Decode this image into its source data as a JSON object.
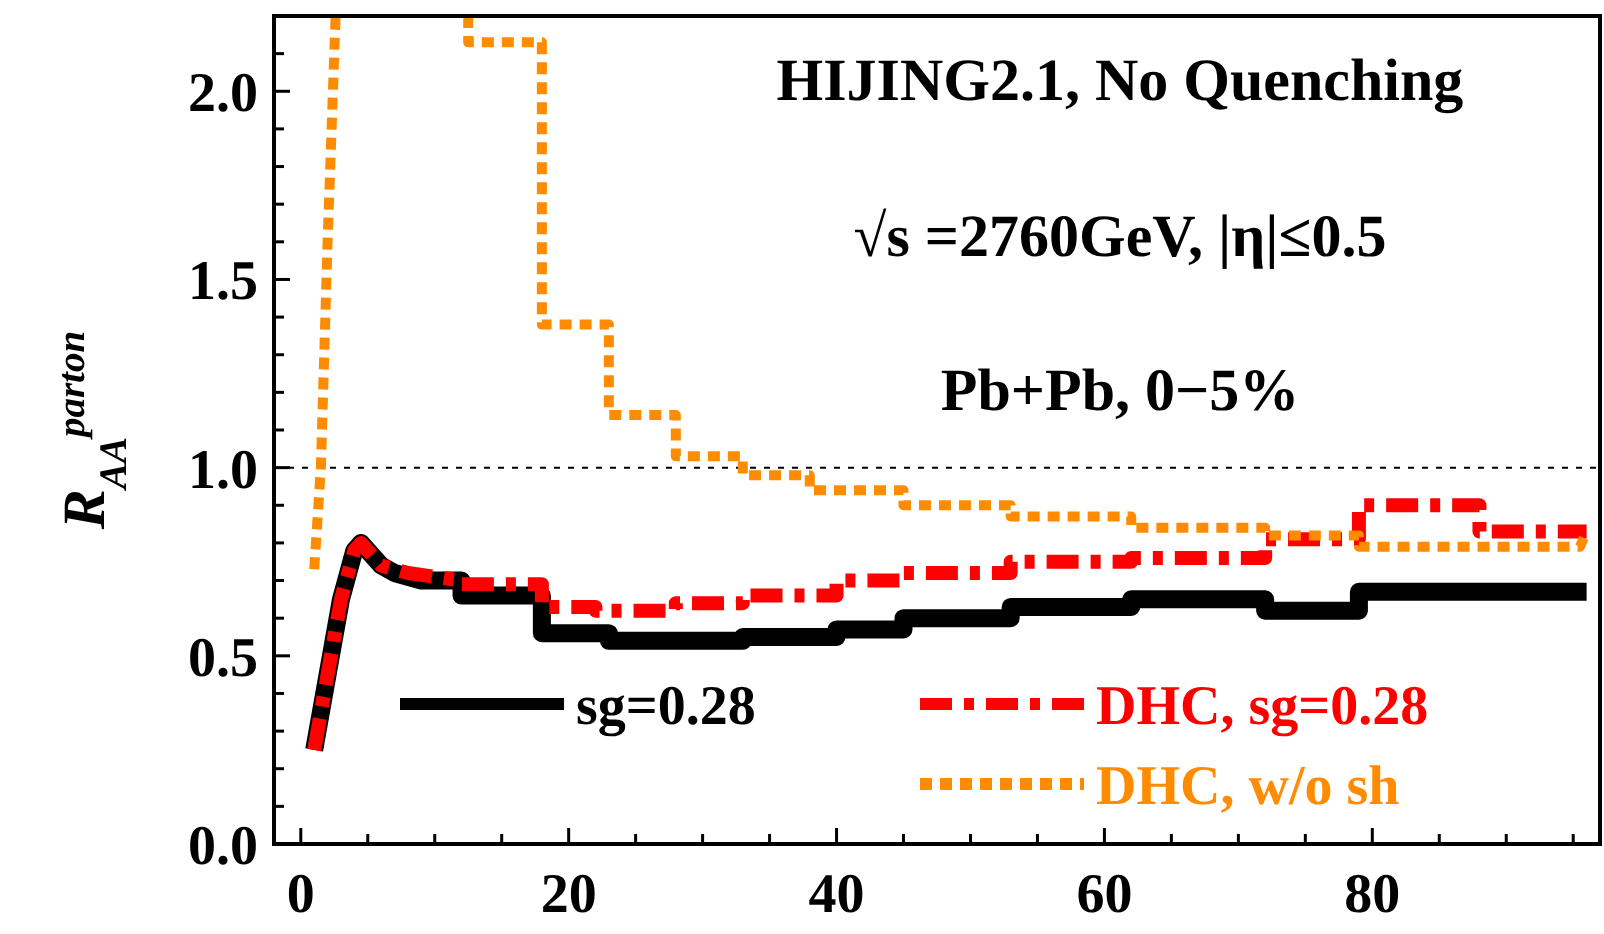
{
  "chart_data": {
    "type": "line",
    "ylabel": "R$_{AA}$$^{parton}$",
    "annotations": [
      "HIJING2.1, No Quenching",
      "√s =2760GeV, |η|≤0.5",
      "Pb+Pb, 0−5%"
    ],
    "xlim": [
      -2,
      97
    ],
    "ylim": [
      0,
      2.2
    ],
    "xticks": [
      0,
      {
        "value": 5,
        "label": null
      },
      {
        "value": 10,
        "label": null
      },
      {
        "value": 15,
        "label": null
      },
      20,
      {
        "value": 25,
        "label": null
      },
      {
        "value": 30,
        "label": null
      },
      {
        "value": 35,
        "label": null
      },
      40,
      {
        "value": 45,
        "label": null
      },
      {
        "value": 50,
        "label": null
      },
      {
        "value": 55,
        "label": null
      },
      60,
      {
        "value": 65,
        "label": null
      },
      {
        "value": 70,
        "label": null
      },
      {
        "value": 75,
        "label": null
      },
      80,
      {
        "value": 85,
        "label": null
      },
      {
        "value": 90,
        "label": null
      },
      {
        "value": 95,
        "label": null
      }
    ],
    "yticks": [
      {
        "value": 0,
        "label": "0.0"
      },
      {
        "value": 0.1,
        "label": null
      },
      {
        "value": 0.2,
        "label": null
      },
      {
        "value": 0.3,
        "label": null
      },
      {
        "value": 0.4,
        "label": null
      },
      {
        "value": 0.5,
        "label": "0.5"
      },
      {
        "value": 0.6,
        "label": null
      },
      {
        "value": 0.7,
        "label": null
      },
      {
        "value": 0.8,
        "label": null
      },
      {
        "value": 0.9,
        "label": null
      },
      {
        "value": 1,
        "label": "1.0"
      },
      {
        "value": 1.1,
        "label": null
      },
      {
        "value": 1.2,
        "label": null
      },
      {
        "value": 1.3,
        "label": null
      },
      {
        "value": 1.4,
        "label": null
      },
      {
        "value": 1.5,
        "label": "1.5"
      },
      {
        "value": 1.6,
        "label": null
      },
      {
        "value": 1.7,
        "label": null
      },
      {
        "value": 1.8,
        "label": null
      },
      {
        "value": 1.9,
        "label": null
      },
      {
        "value": 2,
        "label": "2.0"
      },
      {
        "value": 2.1,
        "label": null
      },
      {
        "value": 2.2,
        "label": null
      }
    ],
    "ref_lines": [
      {
        "axis": "y",
        "value": 1,
        "color": "#000000",
        "line_style": "dotted"
      }
    ],
    "legend": "bottom right",
    "grid": false,
    "series": [
      {
        "name": "sg=0.28",
        "color": "#000000",
        "line_style": "solid",
        "x": [
          1,
          2,
          3,
          4,
          4.5,
          5,
          6,
          7,
          9,
          12,
          12,
          18,
          18,
          23,
          23,
          33,
          33,
          40,
          40,
          45,
          45,
          53,
          53,
          62,
          62,
          72,
          72,
          79,
          79,
          96
        ],
        "values": [
          0.25,
          0.45,
          0.65,
          0.78,
          0.8,
          0.78,
          0.74,
          0.72,
          0.7,
          0.7,
          0.66,
          0.66,
          0.56,
          0.56,
          0.54,
          0.54,
          0.55,
          0.55,
          0.57,
          0.57,
          0.6,
          0.6,
          0.63,
          0.63,
          0.65,
          0.65,
          0.62,
          0.62,
          0.67,
          0.67
        ]
      },
      {
        "name": "DHC, sg=0.28",
        "color": "#ff0000",
        "line_style": "dashed",
        "x": [
          1,
          2,
          3,
          4,
          4.5,
          5,
          6,
          8,
          12,
          12,
          18,
          18,
          22,
          22,
          28,
          28,
          33,
          33,
          40,
          40,
          45,
          45,
          53,
          53,
          62,
          62,
          72,
          72,
          79,
          79,
          88,
          88,
          96
        ],
        "values": [
          0.25,
          0.45,
          0.65,
          0.78,
          0.8,
          0.78,
          0.74,
          0.72,
          0.7,
          0.69,
          0.69,
          0.63,
          0.63,
          0.62,
          0.62,
          0.64,
          0.64,
          0.66,
          0.66,
          0.7,
          0.7,
          0.72,
          0.72,
          0.75,
          0.75,
          0.76,
          0.76,
          0.81,
          0.81,
          0.9,
          0.9,
          0.83,
          0.83
        ]
      },
      {
        "name": "DHC, w/o sh",
        "color": "#ff8c00",
        "line_style": "dotted",
        "x": [
          1,
          1.5,
          2,
          2.6,
          3,
          12.5,
          12.5,
          18,
          18,
          23,
          23,
          28,
          28,
          33,
          33,
          38,
          38,
          45,
          45,
          53,
          53,
          62,
          62,
          72,
          72,
          79,
          79,
          88,
          88,
          95.5,
          96
        ],
        "values": [
          0.73,
          1.0,
          1.6,
          2.2,
          null,
          2.2,
          2.13,
          2.13,
          1.38,
          1.38,
          1.14,
          1.14,
          1.03,
          1.03,
          0.98,
          0.98,
          0.94,
          0.94,
          0.9,
          0.9,
          0.87,
          0.87,
          0.84,
          0.84,
          0.82,
          0.82,
          0.79,
          0.79,
          0.79,
          0.79,
          0.83
        ]
      }
    ]
  }
}
